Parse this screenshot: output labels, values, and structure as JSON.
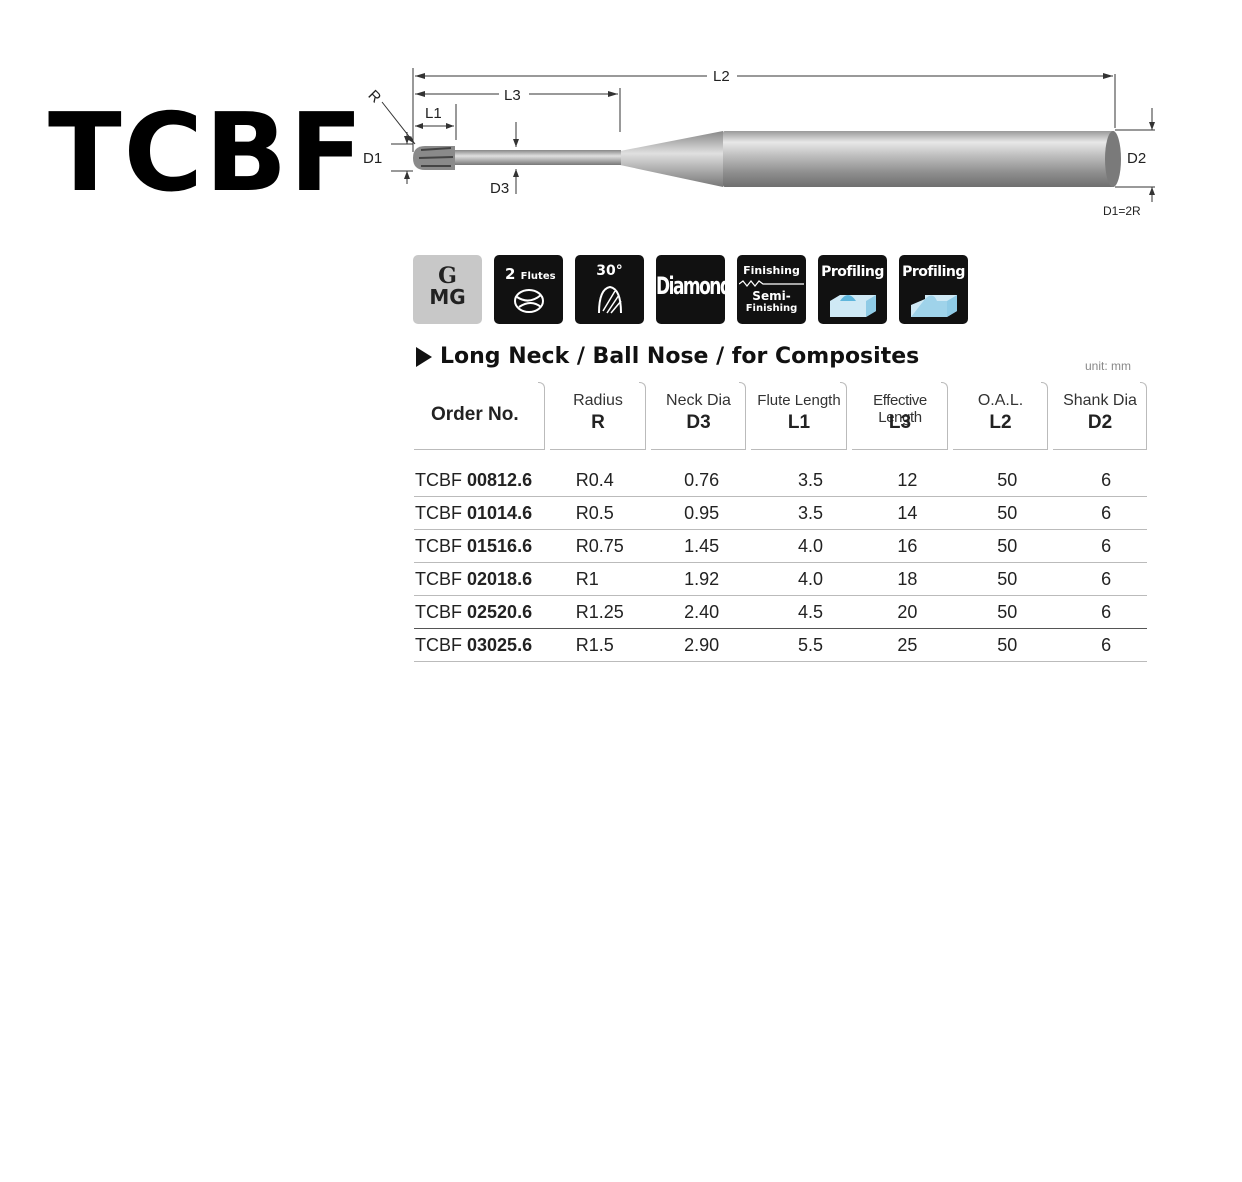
{
  "title": "TCBF",
  "diagram": {
    "labels": {
      "l2": "L2",
      "l3": "L3",
      "l1": "L1",
      "r": "R",
      "d1": "D1",
      "d3": "D3",
      "d2": "D2",
      "formula": "D1=2R"
    }
  },
  "icons": [
    {
      "name": "grade-mg",
      "line1": "G",
      "line2": "MG"
    },
    {
      "name": "flutes",
      "line1": "2",
      "line2": "Flutes"
    },
    {
      "name": "helix-angle",
      "line1": "30°"
    },
    {
      "name": "coating",
      "line1": "Diamond"
    },
    {
      "name": "finishing",
      "line1": "Finishing",
      "line2": "Semi-",
      "line3": "Finishing"
    },
    {
      "name": "profiling-1",
      "line1": "Profiling"
    },
    {
      "name": "profiling-2",
      "line1": "Profiling"
    }
  ],
  "subtitle": "Long Neck / Ball Nose / for Composites",
  "unit": "unit: mm",
  "table": {
    "headers": [
      {
        "top": "Order No.",
        "bottom": ""
      },
      {
        "top": "Radius",
        "bottom": "R"
      },
      {
        "top": "Neck Dia",
        "bottom": "D3"
      },
      {
        "top": "Flute Length",
        "bottom": "L1"
      },
      {
        "top": "Effective Length",
        "bottom": "L3"
      },
      {
        "top": "O.A.L.",
        "bottom": "L2"
      },
      {
        "top": "Shank Dia",
        "bottom": "D2"
      }
    ],
    "rows": [
      {
        "prefix": "TCBF",
        "code": "00812.6",
        "r": "R0.4",
        "d3": "0.76",
        "l1": "3.5",
        "l3": "12",
        "l2": "50",
        "d2": "6"
      },
      {
        "prefix": "TCBF",
        "code": "01014.6",
        "r": "R0.5",
        "d3": "0.95",
        "l1": "3.5",
        "l3": "14",
        "l2": "50",
        "d2": "6"
      },
      {
        "prefix": "TCBF",
        "code": "01516.6",
        "r": "R0.75",
        "d3": "1.45",
        "l1": "4.0",
        "l3": "16",
        "l2": "50",
        "d2": "6"
      },
      {
        "prefix": "TCBF",
        "code": "02018.6",
        "r": "R1",
        "d3": "1.92",
        "l1": "4.0",
        "l3": "18",
        "l2": "50",
        "d2": "6"
      },
      {
        "prefix": "TCBF",
        "code": "02520.6",
        "r": "R1.25",
        "d3": "2.40",
        "l1": "4.5",
        "l3": "20",
        "l2": "50",
        "d2": "6"
      },
      {
        "prefix": "TCBF",
        "code": "03025.6",
        "r": "R1.5",
        "d3": "2.90",
        "l1": "5.5",
        "l3": "25",
        "l2": "50",
        "d2": "6"
      }
    ]
  }
}
